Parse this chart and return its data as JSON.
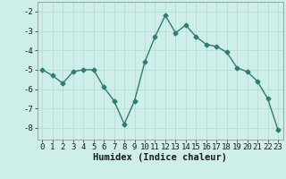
{
  "x": [
    0,
    1,
    2,
    3,
    4,
    5,
    6,
    7,
    8,
    9,
    10,
    11,
    12,
    13,
    14,
    15,
    16,
    17,
    18,
    19,
    20,
    21,
    22,
    23
  ],
  "y": [
    -5.0,
    -5.3,
    -5.7,
    -5.1,
    -5.0,
    -5.0,
    -5.9,
    -6.6,
    -7.8,
    -6.6,
    -4.6,
    -3.3,
    -2.2,
    -3.1,
    -2.7,
    -3.3,
    -3.7,
    -3.8,
    -4.1,
    -4.9,
    -5.1,
    -5.6,
    -6.5,
    -8.1
  ],
  "line_color": "#2e7d6e",
  "marker": "D",
  "marker_size": 2.5,
  "linewidth": 1.0,
  "xlabel": "Humidex (Indice chaleur)",
  "xlabel_fontsize": 7.5,
  "background_color": "#cdeee9",
  "grid_color": "#b8dbd6",
  "tick_color": "#1a1a1a",
  "ylim": [
    -8.6,
    -1.5
  ],
  "xlim": [
    -0.5,
    23.5
  ],
  "yticks": [
    -8,
    -7,
    -6,
    -5,
    -4,
    -3,
    -2
  ],
  "xticks": [
    0,
    1,
    2,
    3,
    4,
    5,
    6,
    7,
    8,
    9,
    10,
    11,
    12,
    13,
    14,
    15,
    16,
    17,
    18,
    19,
    20,
    21,
    22,
    23
  ],
  "xtick_labels": [
    "0",
    "1",
    "2",
    "3",
    "4",
    "5",
    "6",
    "7",
    "8",
    "9",
    "10",
    "11",
    "12",
    "13",
    "14",
    "15",
    "16",
    "17",
    "18",
    "19",
    "20",
    "21",
    "22",
    "23"
  ],
  "ytick_labels": [
    "-8",
    "-7",
    "-6",
    "-5",
    "-4",
    "-3",
    "-2"
  ],
  "tick_fontsize": 6.5
}
